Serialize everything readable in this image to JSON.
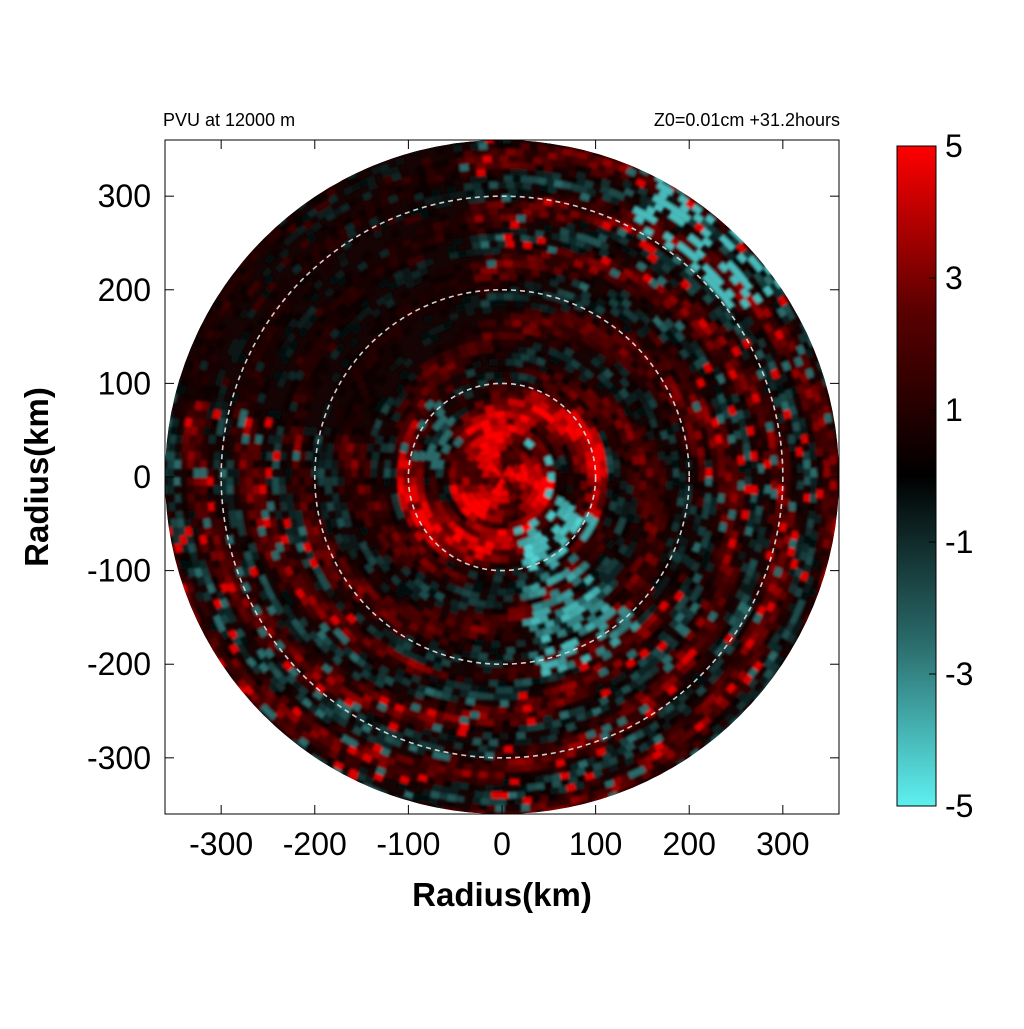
{
  "chart_data": {
    "type": "heatmap",
    "title_left": "PVU at 12000 m",
    "title_right": "Z0=0.01cm  +31.2hours",
    "xlabel": "Radius(km)",
    "ylabel": "Radius(km)",
    "xlim": [
      -360,
      360
    ],
    "ylim": [
      -360,
      360
    ],
    "x_ticks": [
      -300,
      -200,
      -100,
      0,
      100,
      200,
      300
    ],
    "y_ticks": [
      300,
      200,
      100,
      0,
      -100,
      -200,
      -300
    ],
    "domain_radius_km": 360,
    "reference_circles_km": [
      100,
      200,
      300
    ],
    "colorbar": {
      "min": -5,
      "max": 5,
      "tick_values": [
        5,
        3,
        1,
        -1,
        -3,
        -5
      ],
      "tick_labels": [
        "5",
        "3",
        "1",
        "-1",
        "-3",
        "-5"
      ],
      "color_stops": [
        "#5ef0f0",
        "#2a6a6a",
        "#000000",
        "#5a0000",
        "#ff0000"
      ]
    },
    "field_description_regions": [
      {
        "region": "core 0-100 km",
        "dominant_value": 4
      },
      {
        "region": "core eastern patches",
        "dominant_value": -4
      },
      {
        "region": "south-east inflow band",
        "dominant_value": -3
      },
      {
        "region": "outer rings 100-360 km",
        "dominant_value": 1
      }
    ]
  }
}
